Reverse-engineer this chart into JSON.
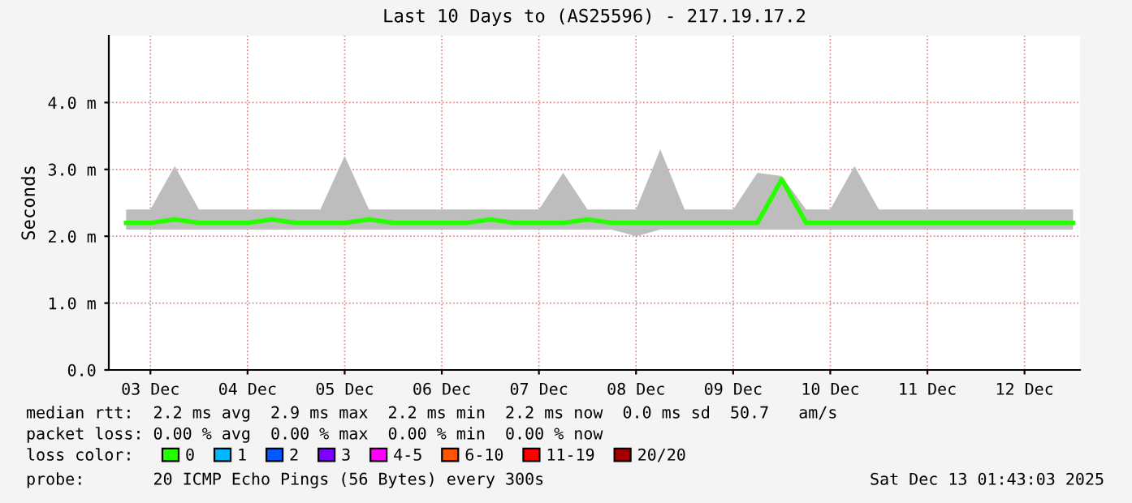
{
  "chart_data": {
    "type": "line",
    "title": "Last 10 Days to (AS25596) - 217.19.17.2",
    "ylabel": "Seconds",
    "x": [
      "2025-12-03T06:00",
      "2025-12-03T12:00",
      "2025-12-03T18:00",
      "2025-12-04T00:00",
      "2025-12-04T06:00",
      "2025-12-04T12:00",
      "2025-12-04T18:00",
      "2025-12-05T00:00",
      "2025-12-05T06:00",
      "2025-12-05T12:00",
      "2025-12-05T18:00",
      "2025-12-06T00:00",
      "2025-12-06T06:00",
      "2025-12-06T12:00",
      "2025-12-06T18:00",
      "2025-12-07T00:00",
      "2025-12-07T06:00",
      "2025-12-07T12:00",
      "2025-12-07T18:00",
      "2025-12-08T00:00",
      "2025-12-08T06:00",
      "2025-12-08T12:00",
      "2025-12-08T18:00",
      "2025-12-09T00:00",
      "2025-12-09T06:00",
      "2025-12-09T12:00",
      "2025-12-09T18:00",
      "2025-12-10T00:00",
      "2025-12-10T06:00",
      "2025-12-10T12:00",
      "2025-12-10T18:00",
      "2025-12-11T00:00",
      "2025-12-11T06:00",
      "2025-12-11T12:00",
      "2025-12-11T18:00",
      "2025-12-12T00:00",
      "2025-12-12T06:00",
      "2025-12-12T12:00",
      "2025-12-12T18:00",
      "2025-12-13T00:00"
    ],
    "series": [
      {
        "name": "0",
        "color": "#26ff00",
        "values": [
          2.2,
          2.2,
          2.25,
          2.2,
          2.2,
          2.2,
          2.25,
          2.2,
          2.2,
          2.2,
          2.25,
          2.2,
          2.2,
          2.2,
          2.2,
          2.25,
          2.2,
          2.2,
          2.2,
          2.25,
          2.2,
          2.2,
          2.2,
          2.2,
          2.2,
          2.2,
          2.2,
          2.85,
          2.2,
          2.2,
          2.2,
          2.2,
          2.2,
          2.2,
          2.2,
          2.2,
          2.2,
          2.2,
          2.2,
          2.2
        ],
        "lower": [
          2.1,
          2.1,
          2.1,
          2.1,
          2.1,
          2.1,
          2.1,
          2.1,
          2.1,
          2.1,
          2.1,
          2.1,
          2.1,
          2.1,
          2.1,
          2.1,
          2.1,
          2.1,
          2.1,
          2.1,
          2.1,
          2.0,
          2.1,
          2.1,
          2.1,
          2.1,
          2.1,
          2.1,
          2.1,
          2.1,
          2.1,
          2.1,
          2.1,
          2.1,
          2.1,
          2.1,
          2.1,
          2.1,
          2.1,
          2.1
        ],
        "upper": [
          2.4,
          2.4,
          3.05,
          2.4,
          2.4,
          2.4,
          2.4,
          2.4,
          2.4,
          3.2,
          2.4,
          2.4,
          2.4,
          2.4,
          2.4,
          2.4,
          2.4,
          2.4,
          2.95,
          2.4,
          2.4,
          2.4,
          3.3,
          2.4,
          2.4,
          2.4,
          2.95,
          2.9,
          2.4,
          2.4,
          3.05,
          2.4,
          2.4,
          2.4,
          2.4,
          2.4,
          2.4,
          2.4,
          2.4,
          2.4
        ]
      },
      {
        "name": "1",
        "color": "#00b8ff",
        "values": [
          null,
          null,
          null,
          null,
          null,
          null,
          null,
          null,
          null,
          null,
          null,
          null,
          null,
          null,
          null,
          null,
          null,
          null,
          null,
          null,
          null,
          null,
          null,
          null,
          null,
          null,
          null,
          null,
          null,
          null,
          null,
          null,
          null,
          null,
          null,
          null,
          null,
          null,
          null,
          null
        ]
      },
      {
        "name": "2",
        "color": "#0059ff",
        "values": [
          null,
          null,
          null,
          null,
          null,
          null,
          null,
          null,
          null,
          null,
          null,
          null,
          null,
          null,
          null,
          null,
          null,
          null,
          null,
          null,
          null,
          null,
          null,
          null,
          null,
          null,
          null,
          null,
          null,
          null,
          null,
          null,
          null,
          null,
          null,
          null,
          null,
          null,
          null,
          null
        ]
      },
      {
        "name": "3",
        "color": "#7e00ff",
        "values": [
          null,
          null,
          null,
          null,
          null,
          null,
          null,
          null,
          null,
          null,
          null,
          null,
          null,
          null,
          null,
          null,
          null,
          null,
          null,
          null,
          null,
          null,
          null,
          null,
          null,
          null,
          null,
          null,
          null,
          null,
          null,
          null,
          null,
          null,
          null,
          null,
          null,
          null,
          null,
          null
        ]
      },
      {
        "name": "4-5",
        "color": "#ff00ff",
        "values": [
          null,
          null,
          null,
          null,
          null,
          null,
          null,
          null,
          null,
          null,
          null,
          null,
          null,
          null,
          null,
          null,
          null,
          null,
          null,
          null,
          null,
          null,
          null,
          null,
          null,
          null,
          null,
          null,
          null,
          null,
          null,
          null,
          null,
          null,
          null,
          null,
          null,
          null,
          null,
          null
        ]
      },
      {
        "name": "6-10",
        "color": "#ff5500",
        "values": [
          null,
          null,
          null,
          null,
          null,
          null,
          null,
          null,
          null,
          null,
          null,
          null,
          null,
          null,
          null,
          null,
          null,
          null,
          null,
          null,
          null,
          null,
          null,
          null,
          null,
          null,
          null,
          null,
          null,
          null,
          null,
          null,
          null,
          null,
          null,
          null,
          null,
          null,
          null,
          null
        ]
      },
      {
        "name": "11-19",
        "color": "#ff0000",
        "values": [
          null,
          null,
          null,
          null,
          null,
          null,
          null,
          null,
          null,
          null,
          null,
          null,
          null,
          null,
          null,
          null,
          null,
          null,
          null,
          null,
          null,
          null,
          null,
          null,
          null,
          null,
          null,
          null,
          null,
          null,
          null,
          null,
          null,
          null,
          null,
          null,
          null,
          null,
          null,
          null
        ]
      },
      {
        "name": "20/20",
        "color": "#a10000",
        "values": [
          null,
          null,
          null,
          null,
          null,
          null,
          null,
          null,
          null,
          null,
          null,
          null,
          null,
          null,
          null,
          null,
          null,
          null,
          null,
          null,
          null,
          null,
          null,
          null,
          null,
          null,
          null,
          null,
          null,
          null,
          null,
          null,
          null,
          null,
          null,
          null,
          null,
          null,
          null,
          null
        ]
      }
    ],
    "legend": "bottom",
    "legend_title": "loss color:",
    "xlim": [
      "2025-12-03T01:43",
      "2025-12-13T01:43"
    ],
    "xticks": [
      {
        "value": "2025-12-03T12:00",
        "label": "03 Dec"
      },
      {
        "value": "2025-12-04T12:00",
        "label": "04 Dec"
      },
      {
        "value": "2025-12-05T12:00",
        "label": "05 Dec"
      },
      {
        "value": "2025-12-06T12:00",
        "label": "06 Dec"
      },
      {
        "value": "2025-12-07T12:00",
        "label": "07 Dec"
      },
      {
        "value": "2025-12-08T12:00",
        "label": "08 Dec"
      },
      {
        "value": "2025-12-09T12:00",
        "label": "09 Dec"
      },
      {
        "value": "2025-12-10T12:00",
        "label": "10 Dec"
      },
      {
        "value": "2025-12-11T12:00",
        "label": "11 Dec"
      },
      {
        "value": "2025-12-12T12:00",
        "label": "12 Dec"
      }
    ],
    "ylim": [
      0,
      5
    ],
    "yticks": [
      {
        "value": 0,
        "label": "0.0"
      },
      {
        "value": 1,
        "label": "1.0 m"
      },
      {
        "value": 2,
        "label": "2.0 m"
      },
      {
        "value": 3,
        "label": "3.0 m"
      },
      {
        "value": 4,
        "label": "4.0 m"
      }
    ],
    "grid": true,
    "annotations": [
      "median rtt:  2.2 ms avg  2.9 ms max  2.2 ms min  2.2 ms now  0.0 ms sd  50.7   am/s",
      "packet loss: 0.00 % avg  0.00 % max  0.00 % min  0.00 % now",
      "probe:       20 ICMP Echo Pings (56 Bytes) every 300s",
      "Sat Dec 13 01:43:03 2025"
    ]
  }
}
